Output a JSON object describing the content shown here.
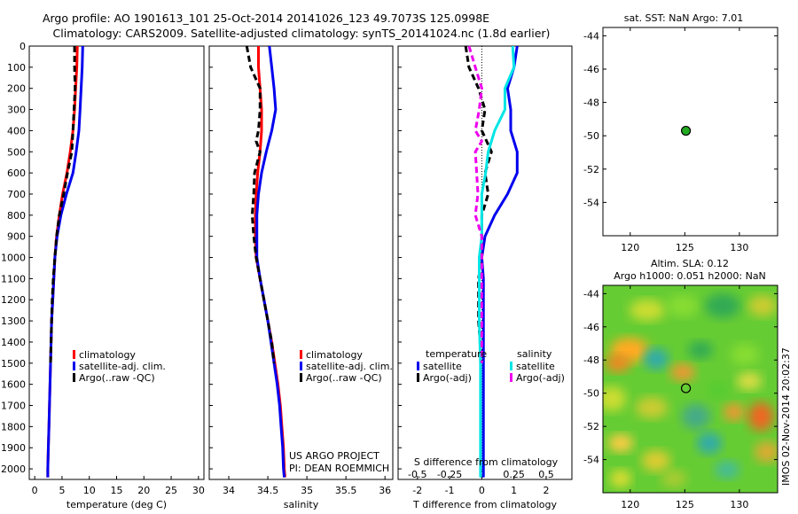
{
  "header": {
    "title_line1": "Argo profile: AO 1901613_101 25-Oct-2014 20141026_123 49.7073S 125.0998E",
    "title_line2": "Climatology: CARS2009. Satellite-adjusted climatology: synTS_20141024.nc (1.8d earlier)"
  },
  "colors": {
    "climatology": "#ff0000",
    "satellite_adj": "#0000ee",
    "argo": "#000000",
    "salinity_satellite": "#00e5e5",
    "salinity_argo": "#ee00ee",
    "float_marker": "#22aa22"
  },
  "chart_data": [
    {
      "id": "temperature",
      "type": "line",
      "xlabel": "temperature (deg C)",
      "xlim": [
        -1,
        31
      ],
      "xticks": [
        0,
        5,
        10,
        15,
        20,
        25,
        30
      ],
      "ylim": [
        2050,
        0
      ],
      "yticks": [
        0,
        100,
        200,
        300,
        400,
        500,
        600,
        700,
        800,
        900,
        1000,
        1100,
        1200,
        1300,
        1400,
        1500,
        1600,
        1700,
        1800,
        1900,
        2000
      ],
      "legend": [
        "climatology",
        "satellite-adj. clim.",
        "Argo(..raw -QC)"
      ],
      "series": [
        {
          "name": "climatology",
          "color": "#ff0000",
          "dash": false,
          "points": [
            [
              7.8,
              0
            ],
            [
              7.7,
              100
            ],
            [
              7.5,
              200
            ],
            [
              7.3,
              300
            ],
            [
              7.0,
              400
            ],
            [
              6.5,
              500
            ],
            [
              5.9,
              600
            ],
            [
              5.1,
              700
            ],
            [
              4.5,
              800
            ],
            [
              4.0,
              900
            ],
            [
              3.7,
              1000
            ],
            [
              3.5,
              1100
            ],
            [
              3.3,
              1200
            ],
            [
              3.1,
              1300
            ],
            [
              3.0,
              1400
            ],
            [
              2.9,
              1500
            ],
            [
              2.8,
              1600
            ],
            [
              2.7,
              1700
            ],
            [
              2.6,
              1800
            ],
            [
              2.5,
              1900
            ],
            [
              2.4,
              2000
            ],
            [
              2.4,
              2040
            ]
          ]
        },
        {
          "name": "satellite-adj. clim.",
          "color": "#0000ee",
          "dash": false,
          "points": [
            [
              8.8,
              0
            ],
            [
              8.7,
              100
            ],
            [
              8.5,
              200
            ],
            [
              8.3,
              300
            ],
            [
              8.1,
              400
            ],
            [
              7.6,
              500
            ],
            [
              7.0,
              600
            ],
            [
              5.8,
              700
            ],
            [
              4.8,
              800
            ],
            [
              4.1,
              900
            ],
            [
              3.7,
              1000
            ],
            [
              3.5,
              1100
            ],
            [
              3.3,
              1200
            ],
            [
              3.1,
              1300
            ],
            [
              3.0,
              1400
            ],
            [
              2.9,
              1500
            ],
            [
              2.8,
              1600
            ],
            [
              2.7,
              1700
            ],
            [
              2.6,
              1800
            ],
            [
              2.5,
              1900
            ],
            [
              2.4,
              2000
            ],
            [
              2.4,
              2040
            ]
          ]
        },
        {
          "name": "Argo(..raw -QC)",
          "color": "#000000",
          "dash": true,
          "points": [
            [
              7.3,
              0
            ],
            [
              7.3,
              100
            ],
            [
              7.4,
              200
            ],
            [
              7.2,
              300
            ],
            [
              7.0,
              400
            ],
            [
              6.8,
              500
            ],
            [
              6.0,
              600
            ],
            [
              5.3,
              700
            ],
            [
              4.5,
              800
            ],
            [
              4.0,
              900
            ],
            [
              3.7,
              1000
            ],
            [
              3.4,
              1100
            ],
            [
              3.2,
              1200
            ],
            [
              3.1,
              1300
            ],
            [
              3.0,
              1400
            ],
            [
              2.9,
              1500
            ]
          ]
        }
      ]
    },
    {
      "id": "salinity",
      "type": "line",
      "xlabel": "salinity",
      "xlim": [
        33.75,
        36.1
      ],
      "xticks": [
        34,
        34.5,
        35,
        35.5,
        36
      ],
      "xticklabels": [
        "34",
        "34.5",
        "35",
        "35.5",
        "36"
      ],
      "ylim": [
        2050,
        0
      ],
      "legend": [
        "climatology",
        "satellite-adj. clim.",
        "Argo(..raw -QC)"
      ],
      "series": [
        {
          "name": "climatology",
          "color": "#ff0000",
          "dash": false,
          "points": [
            [
              34.38,
              0
            ],
            [
              34.38,
              100
            ],
            [
              34.4,
              200
            ],
            [
              34.42,
              300
            ],
            [
              34.42,
              400
            ],
            [
              34.4,
              500
            ],
            [
              34.37,
              600
            ],
            [
              34.35,
              700
            ],
            [
              34.34,
              800
            ],
            [
              34.34,
              900
            ],
            [
              34.35,
              1000
            ],
            [
              34.4,
              1100
            ],
            [
              34.45,
              1200
            ],
            [
              34.5,
              1300
            ],
            [
              34.55,
              1400
            ],
            [
              34.59,
              1500
            ],
            [
              34.63,
              1600
            ],
            [
              34.66,
              1700
            ],
            [
              34.68,
              1800
            ],
            [
              34.7,
              1900
            ],
            [
              34.71,
              2000
            ],
            [
              34.72,
              2040
            ]
          ]
        },
        {
          "name": "satellite-adj. clim.",
          "color": "#0000ee",
          "dash": false,
          "points": [
            [
              34.52,
              0
            ],
            [
              34.55,
              100
            ],
            [
              34.58,
              200
            ],
            [
              34.6,
              300
            ],
            [
              34.55,
              400
            ],
            [
              34.48,
              500
            ],
            [
              34.42,
              600
            ],
            [
              34.38,
              700
            ],
            [
              34.36,
              800
            ],
            [
              34.36,
              900
            ],
            [
              34.36,
              1000
            ],
            [
              34.4,
              1100
            ],
            [
              34.45,
              1200
            ],
            [
              34.5,
              1300
            ],
            [
              34.54,
              1400
            ],
            [
              34.58,
              1500
            ],
            [
              34.62,
              1600
            ],
            [
              34.65,
              1700
            ],
            [
              34.67,
              1800
            ],
            [
              34.69,
              1900
            ],
            [
              34.7,
              2000
            ],
            [
              34.71,
              2040
            ]
          ]
        },
        {
          "name": "Argo(..raw -QC)",
          "color": "#000000",
          "dash": true,
          "points": [
            [
              34.23,
              0
            ],
            [
              34.28,
              100
            ],
            [
              34.4,
              200
            ],
            [
              34.4,
              300
            ],
            [
              34.38,
              400
            ],
            [
              34.35,
              450
            ],
            [
              34.4,
              500
            ],
            [
              34.33,
              600
            ],
            [
              34.32,
              700
            ],
            [
              34.3,
              800
            ],
            [
              34.32,
              900
            ],
            [
              34.35,
              1000
            ],
            [
              34.4,
              1100
            ],
            [
              34.45,
              1200
            ],
            [
              34.5,
              1300
            ],
            [
              34.55,
              1400
            ],
            [
              34.58,
              1500
            ]
          ]
        }
      ],
      "annotation": [
        "US ARGO PROJECT",
        "PI: DEAN ROEMMICH"
      ]
    },
    {
      "id": "difference",
      "type": "line",
      "xlabel": "T difference from climatology",
      "xlabel_top": "S difference from climatology",
      "xlim": [
        -2.6,
        2.8
      ],
      "xticks": [
        -2,
        -1,
        0,
        1,
        2
      ],
      "xticks_top": [
        -0.5,
        -0.25,
        0,
        0.25,
        0.5
      ],
      "xticks_top_labels": [
        "-0.5",
        "-0.25",
        "0",
        "0.25",
        "0.5"
      ],
      "ylim": [
        2050,
        0
      ],
      "legend_temperature": {
        "title": "temperature",
        "items": [
          "satellite",
          "Argo(-adj)"
        ]
      },
      "legend_salinity": {
        "title": "salinity",
        "items": [
          "satellite",
          "Argo(-adj)"
        ]
      },
      "series": [
        {
          "name": "temperature satellite",
          "color": "#0000ee",
          "dash": false,
          "points": [
            [
              1.1,
              0
            ],
            [
              1.0,
              100
            ],
            [
              0.8,
              200
            ],
            [
              0.9,
              300
            ],
            [
              0.9,
              400
            ],
            [
              1.1,
              500
            ],
            [
              1.1,
              600
            ],
            [
              0.8,
              700
            ],
            [
              0.4,
              800
            ],
            [
              0.1,
              900
            ],
            [
              0.0,
              1000
            ],
            [
              0.05,
              1100
            ],
            [
              0.05,
              1500
            ],
            [
              0.05,
              2040
            ]
          ]
        },
        {
          "name": "temperature Argo(-adj)",
          "color": "#000000",
          "dash": true,
          "points": [
            [
              -0.5,
              0
            ],
            [
              -0.4,
              100
            ],
            [
              -0.1,
              200
            ],
            [
              0.1,
              300
            ],
            [
              0.0,
              400
            ],
            [
              0.3,
              500
            ],
            [
              0.1,
              600
            ],
            [
              0.2,
              700
            ],
            [
              0.0,
              800
            ],
            [
              0.0,
              900
            ],
            [
              0.0,
              1000
            ],
            [
              -0.1,
              1100
            ],
            [
              -0.1,
              1300
            ],
            [
              0.0,
              1500
            ]
          ]
        },
        {
          "name": "salinity satellite",
          "color": "#00e5e5",
          "dash": false,
          "points": [
            [
              0.24,
              0
            ],
            [
              0.25,
              100
            ],
            [
              0.18,
              200
            ],
            [
              0.18,
              300
            ],
            [
              0.1,
              400
            ],
            [
              0.05,
              500
            ],
            [
              0.03,
              600
            ],
            [
              0.0,
              700
            ],
            [
              0.0,
              800
            ],
            [
              0.0,
              900
            ],
            [
              -0.02,
              1000
            ],
            [
              -0.02,
              1100
            ],
            [
              -0.02,
              1300
            ],
            [
              -0.01,
              1500
            ],
            [
              -0.01,
              1700
            ],
            [
              -0.01,
              1900
            ],
            [
              -0.01,
              2040
            ]
          ]
        },
        {
          "name": "salinity Argo(-adj)",
          "color": "#ee00ee",
          "dash": true,
          "points": [
            [
              -0.1,
              0
            ],
            [
              -0.05,
              100
            ],
            [
              0.0,
              200
            ],
            [
              -0.02,
              300
            ],
            [
              -0.05,
              400
            ],
            [
              0.0,
              450
            ],
            [
              -0.05,
              500
            ],
            [
              -0.04,
              600
            ],
            [
              -0.03,
              700
            ],
            [
              -0.05,
              800
            ],
            [
              0.0,
              900
            ],
            [
              0.0,
              1000
            ],
            [
              0.0,
              1100
            ],
            [
              0.0,
              1300
            ],
            [
              0.0,
              1500
            ]
          ]
        }
      ]
    },
    {
      "id": "sst_map",
      "type": "scatter",
      "title": "sat. SST: NaN Argo: 7.01",
      "xlim": [
        117.5,
        133.5
      ],
      "xticks": [
        120,
        125,
        130
      ],
      "ylim": [
        -56,
        -43.5
      ],
      "yticks": [
        -44,
        -46,
        -48,
        -50,
        -52,
        -54
      ],
      "points": [
        {
          "x": 125.1,
          "y": -49.7
        }
      ]
    },
    {
      "id": "sla_map",
      "type": "heatmap",
      "title_line1": "Altim. SLA: 0.12",
      "title_line2": "Argo h1000: 0.051 h2000: NaN",
      "xlim": [
        117.5,
        133.5
      ],
      "xticks": [
        120,
        125,
        130
      ],
      "ylim": [
        -56,
        -43.5
      ],
      "yticks": [
        -44,
        -46,
        -48,
        -50,
        -52,
        -54
      ],
      "points": [
        {
          "x": 125.1,
          "y": -49.7
        }
      ],
      "side_label": "IMOS 02-Nov-2014 20:02:37"
    }
  ]
}
